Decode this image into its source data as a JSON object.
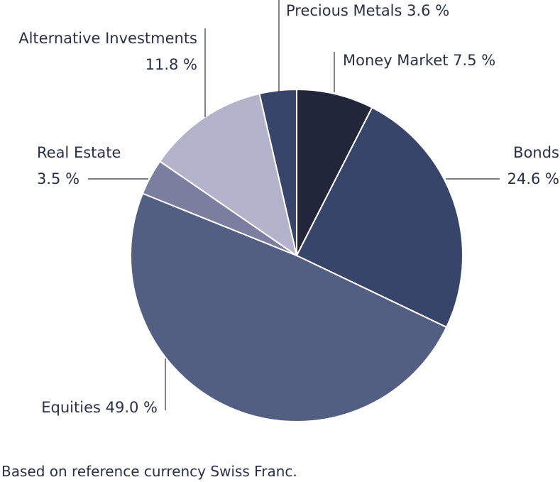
{
  "chart_data": {
    "type": "pie",
    "title": "",
    "slices": [
      {
        "label": "Money Market",
        "value": 7.5,
        "value_label": "7.5 %",
        "color": "#22263b"
      },
      {
        "label": "Bonds",
        "value": 24.6,
        "value_label": "24.6 %",
        "color": "#38456b"
      },
      {
        "label": "Equities",
        "value": 49.0,
        "value_label": "49.0 %",
        "color": "#535e83"
      },
      {
        "label": "Real Estate",
        "value": 3.5,
        "value_label": "3.5 %",
        "color": "#7b7e9e"
      },
      {
        "label": "Alternative Investments",
        "value": 11.8,
        "value_label": "11.8 %",
        "color": "#b3b4cb"
      },
      {
        "label": "Precious Metals",
        "value": 3.6,
        "value_label": "3.6 %",
        "color": "#38456b"
      }
    ],
    "start_angle": "12 o'clock",
    "direction": "clockwise",
    "legend": "none"
  },
  "footnote": "Based on reference currency Swiss Franc."
}
